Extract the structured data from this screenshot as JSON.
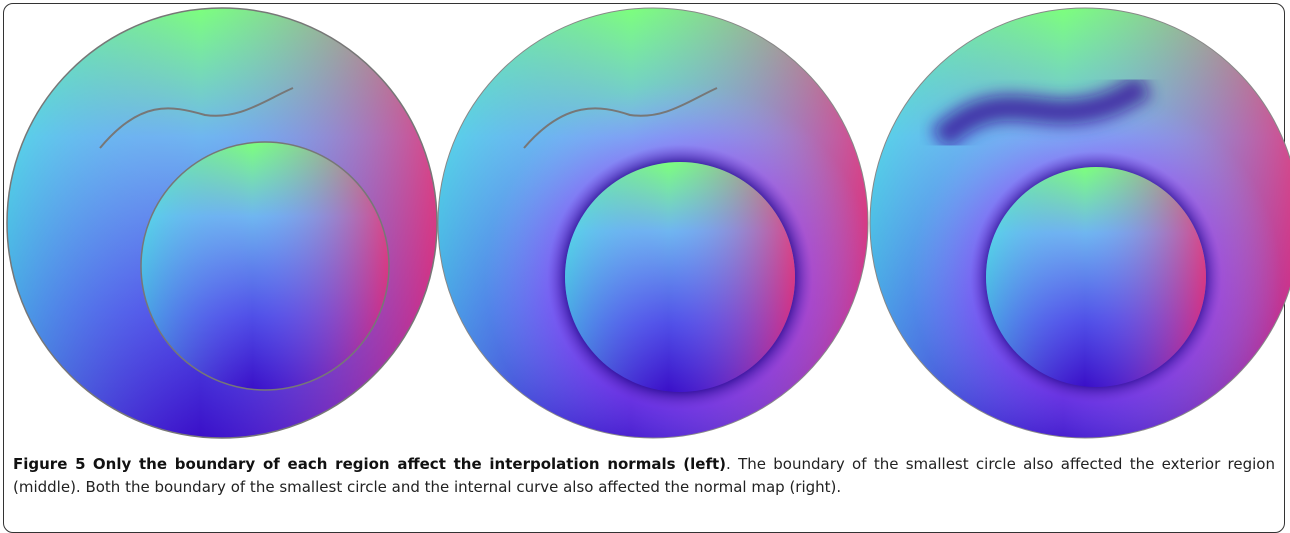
{
  "figure": {
    "label": "Figure 5",
    "title": "Only the boundary of each region affect the interpolation normals (left)",
    "text": ". The boundary of the smallest circle also affected the exterior region (middle). Both the boundary of the smallest circle and the internal curve also affected the normal map (right)."
  }
}
